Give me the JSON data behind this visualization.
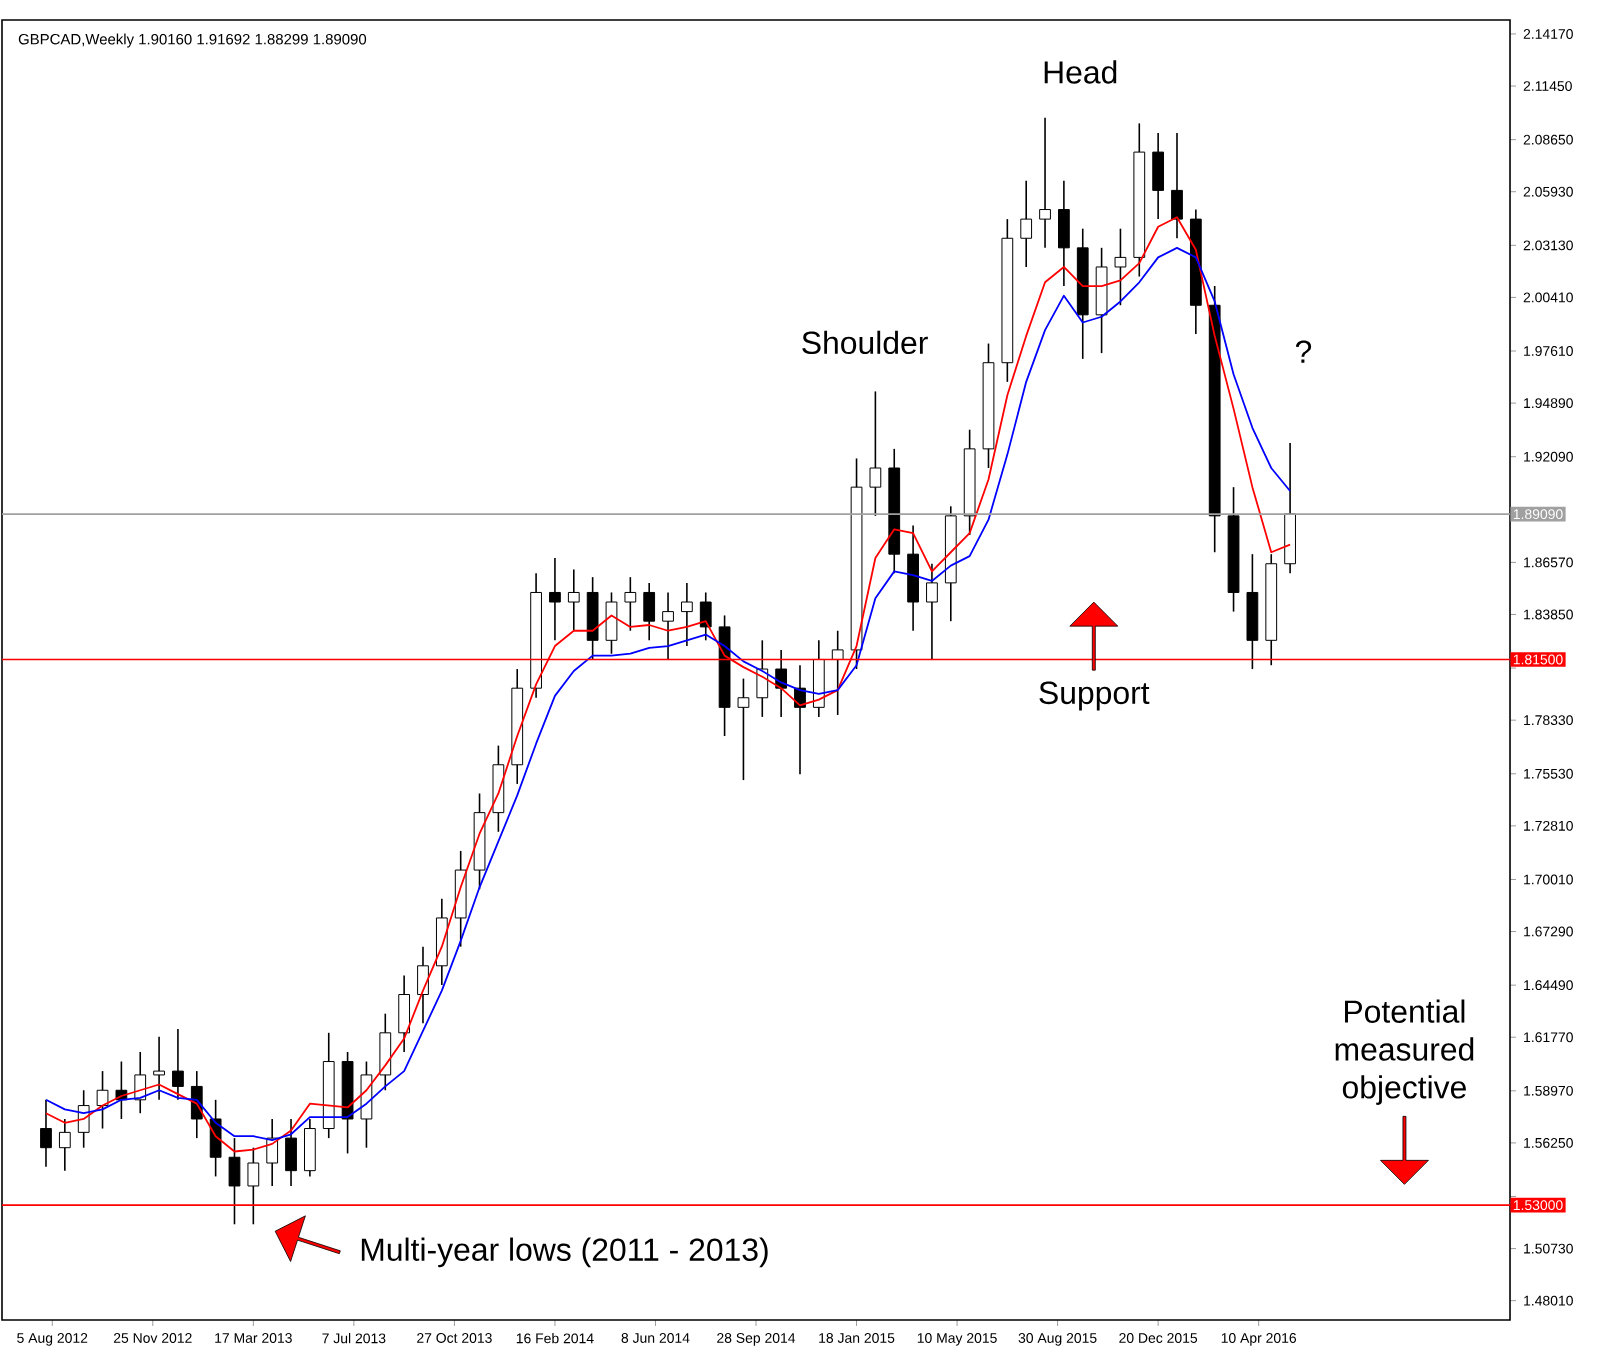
{
  "chart_data": {
    "type": "candlestick",
    "title": "GBPCAD,Weekly  1.90160 1.91692 1.88299 1.89090",
    "color": "#000000",
    "x": [
      "2012-07-29",
      "2012-08-19",
      "2012-09-09",
      "2012-09-30",
      "2012-10-21",
      "2012-11-11",
      "2012-12-02",
      "2012-12-23",
      "2013-01-13",
      "2013-02-03",
      "2013-02-24",
      "2013-03-17",
      "2013-04-07",
      "2013-04-28",
      "2013-05-19",
      "2013-06-09",
      "2013-06-30",
      "2013-07-21",
      "2013-08-11",
      "2013-09-01",
      "2013-09-22",
      "2013-10-13",
      "2013-11-03",
      "2013-11-24",
      "2013-12-15",
      "2014-01-05",
      "2014-01-26",
      "2014-02-16",
      "2014-03-09",
      "2014-03-30",
      "2014-04-20",
      "2014-05-11",
      "2014-06-01",
      "2014-06-22",
      "2014-07-13",
      "2014-08-03",
      "2014-08-24",
      "2014-09-14",
      "2014-10-05",
      "2014-10-26",
      "2014-11-16",
      "2014-12-07",
      "2014-12-28",
      "2015-01-18",
      "2015-02-08",
      "2015-03-01",
      "2015-03-22",
      "2015-04-12",
      "2015-05-03",
      "2015-05-24",
      "2015-06-14",
      "2015-07-05",
      "2015-07-26",
      "2015-08-16",
      "2015-09-06",
      "2015-09-27",
      "2015-10-18",
      "2015-11-08",
      "2015-11-29",
      "2015-12-20",
      "2016-01-10",
      "2016-01-31",
      "2016-02-21",
      "2016-03-13",
      "2016-04-03",
      "2016-04-24",
      "2016-05-15"
    ],
    "ohlc": [
      [
        1.57,
        1.585,
        1.55,
        1.56
      ],
      [
        1.56,
        1.575,
        1.548,
        1.568
      ],
      [
        1.568,
        1.59,
        1.56,
        1.582
      ],
      [
        1.582,
        1.6,
        1.57,
        1.59
      ],
      [
        1.59,
        1.605,
        1.575,
        1.585
      ],
      [
        1.585,
        1.61,
        1.578,
        1.598
      ],
      [
        1.598,
        1.618,
        1.585,
        1.6
      ],
      [
        1.6,
        1.622,
        1.585,
        1.592
      ],
      [
        1.592,
        1.6,
        1.565,
        1.575
      ],
      [
        1.575,
        1.585,
        1.545,
        1.555
      ],
      [
        1.555,
        1.565,
        1.52,
        1.54
      ],
      [
        1.54,
        1.56,
        1.52,
        1.552
      ],
      [
        1.552,
        1.575,
        1.54,
        1.565
      ],
      [
        1.565,
        1.575,
        1.54,
        1.548
      ],
      [
        1.548,
        1.575,
        1.545,
        1.57
      ],
      [
        1.57,
        1.62,
        1.565,
        1.605
      ],
      [
        1.605,
        1.61,
        1.557,
        1.575
      ],
      [
        1.575,
        1.605,
        1.56,
        1.598
      ],
      [
        1.598,
        1.63,
        1.59,
        1.62
      ],
      [
        1.62,
        1.65,
        1.61,
        1.64
      ],
      [
        1.64,
        1.665,
        1.625,
        1.655
      ],
      [
        1.655,
        1.69,
        1.645,
        1.68
      ],
      [
        1.68,
        1.715,
        1.665,
        1.705
      ],
      [
        1.705,
        1.745,
        1.695,
        1.735
      ],
      [
        1.735,
        1.77,
        1.725,
        1.76
      ],
      [
        1.76,
        1.81,
        1.75,
        1.8
      ],
      [
        1.8,
        1.86,
        1.795,
        1.85
      ],
      [
        1.85,
        1.868,
        1.825,
        1.845
      ],
      [
        1.845,
        1.862,
        1.83,
        1.85
      ],
      [
        1.85,
        1.858,
        1.815,
        1.825
      ],
      [
        1.825,
        1.85,
        1.818,
        1.845
      ],
      [
        1.845,
        1.858,
        1.83,
        1.85
      ],
      [
        1.85,
        1.855,
        1.825,
        1.835
      ],
      [
        1.835,
        1.85,
        1.815,
        1.84
      ],
      [
        1.84,
        1.855,
        1.822,
        1.845
      ],
      [
        1.845,
        1.85,
        1.825,
        1.832
      ],
      [
        1.832,
        1.838,
        1.775,
        1.79
      ],
      [
        1.79,
        1.805,
        1.752,
        1.795
      ],
      [
        1.795,
        1.825,
        1.785,
        1.81
      ],
      [
        1.81,
        1.82,
        1.785,
        1.8
      ],
      [
        1.8,
        1.812,
        1.755,
        1.79
      ],
      [
        1.79,
        1.825,
        1.785,
        1.815
      ],
      [
        1.815,
        1.83,
        1.786,
        1.82
      ],
      [
        1.82,
        1.92,
        1.81,
        1.905
      ],
      [
        1.905,
        1.955,
        1.89,
        1.915
      ],
      [
        1.915,
        1.925,
        1.86,
        1.87
      ],
      [
        1.87,
        1.885,
        1.83,
        1.845
      ],
      [
        1.845,
        1.865,
        1.815,
        1.855
      ],
      [
        1.855,
        1.895,
        1.835,
        1.89
      ],
      [
        1.89,
        1.935,
        1.88,
        1.925
      ],
      [
        1.925,
        1.98,
        1.915,
        1.97
      ],
      [
        1.97,
        2.045,
        1.96,
        2.035
      ],
      [
        2.035,
        2.065,
        2.02,
        2.045
      ],
      [
        2.045,
        2.098,
        2.03,
        2.05
      ],
      [
        2.05,
        2.065,
        2.01,
        2.03
      ],
      [
        2.03,
        2.04,
        1.972,
        1.995
      ],
      [
        1.995,
        2.03,
        1.975,
        2.02
      ],
      [
        2.02,
        2.04,
        2.0,
        2.025
      ],
      [
        2.025,
        2.095,
        2.015,
        2.08
      ],
      [
        2.08,
        2.09,
        2.045,
        2.06
      ],
      [
        2.06,
        2.09,
        2.035,
        2.045
      ],
      [
        2.045,
        2.05,
        1.985,
        2.0
      ],
      [
        2.0,
        2.01,
        1.871,
        1.89
      ],
      [
        1.89,
        1.905,
        1.84,
        1.85
      ],
      [
        1.85,
        1.87,
        1.81,
        1.825
      ],
      [
        1.825,
        1.87,
        1.812,
        1.865
      ],
      [
        1.865,
        1.928,
        1.86,
        1.891
      ]
    ],
    "series": [
      {
        "type": "line",
        "color": "#ff0000",
        "values": [
          1.578,
          1.573,
          1.575,
          1.582,
          1.587,
          1.59,
          1.593,
          1.588,
          1.583,
          1.566,
          1.558,
          1.559,
          1.562,
          1.569,
          1.583,
          1.582,
          1.581,
          1.59,
          1.603,
          1.617,
          1.642,
          1.665,
          1.696,
          1.724,
          1.745,
          1.775,
          1.802,
          1.822,
          1.83,
          1.83,
          1.838,
          1.832,
          1.833,
          1.83,
          1.832,
          1.835,
          1.817,
          1.811,
          1.806,
          1.8,
          1.791,
          1.794,
          1.799,
          1.822,
          1.868,
          1.883,
          1.881,
          1.861,
          1.871,
          1.881,
          1.909,
          1.953,
          1.984,
          2.012,
          2.02,
          2.01,
          2.01,
          2.013,
          2.022,
          2.041,
          2.046,
          2.029,
          1.984,
          1.946,
          1.905,
          1.871,
          1.875
        ]
      },
      {
        "type": "line",
        "color": "#0000ff",
        "values": [
          1.585,
          1.58,
          1.578,
          1.58,
          1.585,
          1.586,
          1.59,
          1.586,
          1.585,
          1.573,
          1.566,
          1.566,
          1.564,
          1.567,
          1.576,
          1.576,
          1.576,
          1.583,
          1.592,
          1.6,
          1.621,
          1.642,
          1.668,
          1.696,
          1.72,
          1.744,
          1.771,
          1.796,
          1.809,
          1.817,
          1.817,
          1.818,
          1.821,
          1.822,
          1.825,
          1.828,
          1.822,
          1.814,
          1.809,
          1.803,
          1.799,
          1.797,
          1.799,
          1.812,
          1.847,
          1.861,
          1.859,
          1.856,
          1.864,
          1.869,
          1.888,
          1.922,
          1.96,
          1.987,
          2.005,
          1.991,
          1.994,
          2.002,
          2.012,
          2.025,
          2.03,
          2.025,
          2.002,
          1.964,
          1.936,
          1.915,
          1.903
        ]
      }
    ],
    "xlim": [
      "2012-06-10",
      "2017-01-15"
    ],
    "xticks": [
      {
        "value": "2012-08-05",
        "label": "5 Aug 2012"
      },
      {
        "value": "2012-11-25",
        "label": "25 Nov 2012"
      },
      {
        "value": "2013-03-17",
        "label": "17 Mar 2013"
      },
      {
        "value": "2013-07-07",
        "label": "7 Jul 2013"
      },
      {
        "value": "2013-10-27",
        "label": "27 Oct 2013"
      },
      {
        "value": "2014-02-16",
        "label": "16 Feb 2014"
      },
      {
        "value": "2014-06-08",
        "label": "8 Jun 2014"
      },
      {
        "value": "2014-09-28",
        "label": "28 Sep 2014"
      },
      {
        "value": "2015-01-18",
        "label": "18 Jan 2015"
      },
      {
        "value": "2015-05-10",
        "label": "10 May 2015"
      },
      {
        "value": "2015-08-30",
        "label": "30 Aug 2015"
      },
      {
        "value": "2015-12-20",
        "label": "20 Dec 2015"
      },
      {
        "value": "2016-04-10",
        "label": "10 Apr 2016"
      }
    ],
    "ylim": [
      1.47,
      2.149
    ],
    "yticks": [
      {
        "value": 2.1417,
        "label": "2.14170"
      },
      {
        "value": 2.1145,
        "label": "2.11450"
      },
      {
        "value": 2.0865,
        "label": "2.08650"
      },
      {
        "value": 2.0593,
        "label": "2.05930"
      },
      {
        "value": 2.0313,
        "label": "2.03130"
      },
      {
        "value": 2.0041,
        "label": "2.00410"
      },
      {
        "value": 1.9761,
        "label": "1.97610"
      },
      {
        "value": 1.9489,
        "label": "1.94890"
      },
      {
        "value": 1.9209,
        "label": "1.92090"
      },
      {
        "value": 1.8929,
        "label": null
      },
      {
        "value": 1.8657,
        "label": "1.86570"
      },
      {
        "value": 1.8385,
        "label": "1.83850"
      },
      {
        "value": 1.8105,
        "label": null
      },
      {
        "value": 1.7833,
        "label": "1.78330"
      },
      {
        "value": 1.7553,
        "label": "1.75530"
      },
      {
        "value": 1.7281,
        "label": "1.72810"
      },
      {
        "value": 1.7001,
        "label": "1.70010"
      },
      {
        "value": 1.6729,
        "label": "1.67290"
      },
      {
        "value": 1.6449,
        "label": "1.64490"
      },
      {
        "value": 1.6177,
        "label": "1.61770"
      },
      {
        "value": 1.5897,
        "label": "1.58970"
      },
      {
        "value": 1.5625,
        "label": "1.56250"
      },
      {
        "value": 1.5345,
        "label": null
      },
      {
        "value": 1.5073,
        "label": "1.50730"
      },
      {
        "value": 1.4801,
        "label": "1.48010"
      }
    ],
    "ref_lines": [
      {
        "axis": "y",
        "value": 1.8909,
        "label": "1.89090",
        "color": "#a0a0a0"
      },
      {
        "axis": "y",
        "value": 1.815,
        "label": "1.81500",
        "color": "#ff0000"
      },
      {
        "axis": "y",
        "value": 1.53,
        "label": "1.53000",
        "color": "#ff0000"
      }
    ],
    "annotations": [
      "Head",
      "Shoulder",
      "?",
      "Support",
      "Potential measured objective",
      "Multi-year lows (2011 - 2013)"
    ]
  }
}
